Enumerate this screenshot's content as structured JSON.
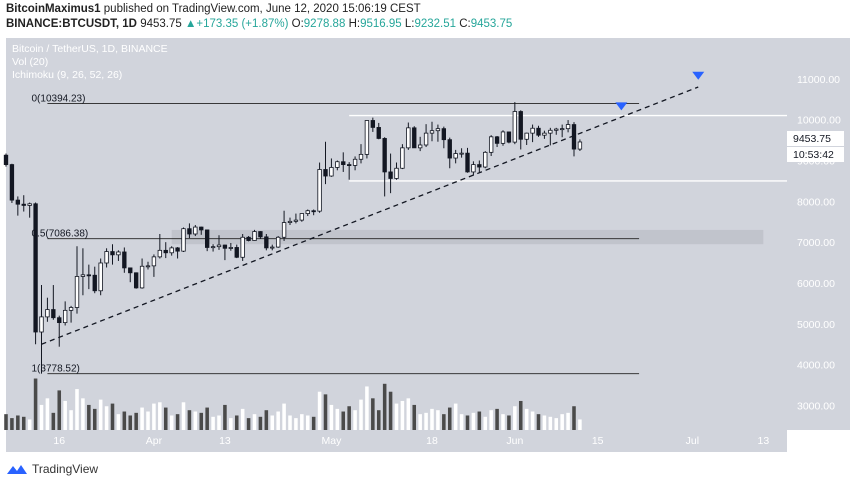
{
  "header": {
    "author": "BitcoinMaximus1",
    "published": "published on TradingView.com, June 12, 2020 15:06:19 CEST",
    "symbol": "BINANCE:BTCUSDT, 1D",
    "last": "9453.75",
    "change": "+173.35 (+1.87%)",
    "o_label": "O:",
    "o_value": "9278.88",
    "h_label": "H:",
    "h_value": "9516.95",
    "l_label": "L:",
    "l_value": "9232.51",
    "c_label": "C:",
    "c_value": "9453.75"
  },
  "legend": {
    "title": "Bitcoin / TetherUS, 1D, BINANCE",
    "vol": "Vol (20)",
    "ichimoku": "Ichimoku (9, 26, 52, 26)"
  },
  "price_tags": {
    "last": "9453.75",
    "countdown": "10:53:42"
  },
  "footer": {
    "brand": "TradingView"
  },
  "colors": {
    "background": "#d1d4dc",
    "up_candle": "#ffffff",
    "down_candle": "#131722",
    "vol_up": "#ffffff",
    "vol_down": "#4a4a4a",
    "marker": "#2962ff",
    "text_green": "#26a69a"
  },
  "chart_data": {
    "type": "candlestick",
    "y_axis": {
      "min": 2400,
      "max": 12000,
      "ticks": [
        3000,
        4000,
        5000,
        6000,
        7000,
        8000,
        9000,
        10000,
        11000
      ],
      "tick_labels": [
        "3000.00",
        "4000.00",
        "5000.00",
        "6000.00",
        "7000.00",
        "8000.00",
        "9000.00",
        "10000.00",
        "11000.00"
      ]
    },
    "x_axis": {
      "start": "2020-03-07",
      "end": "2020-07-17",
      "ticks": [
        {
          "date": "2020-03-16",
          "label": "16"
        },
        {
          "date": "2020-04-01",
          "label": "Apr"
        },
        {
          "date": "2020-04-13",
          "label": "13"
        },
        {
          "date": "2020-05-01",
          "label": "May"
        },
        {
          "date": "2020-05-18",
          "label": "18"
        },
        {
          "date": "2020-06-01",
          "label": "Jun"
        },
        {
          "date": "2020-06-15",
          "label": "15"
        },
        {
          "date": "2020-07-01",
          "label": "Jul"
        },
        {
          "date": "2020-07-13",
          "label": "13"
        }
      ]
    },
    "fib_levels": [
      {
        "label": "0(10394.23)",
        "value": 10394.23,
        "end": "2020-06-22"
      },
      {
        "label": "0.5(7086.38)",
        "value": 7086.38,
        "end": "2020-06-22"
      },
      {
        "label": "1(3778.52)",
        "value": 3778.52,
        "end": "2020-06-22"
      }
    ],
    "horizontal_lines": [
      10100,
      8500
    ],
    "zone": {
      "from": 6950,
      "to": 7300,
      "start": "2020-04-04",
      "end": "2020-07-13"
    },
    "trendline": {
      "start_date": "2020-03-13",
      "start_value": 4500,
      "end_date": "2020-07-02",
      "end_value": 10800
    },
    "markers": [
      {
        "date": "2020-06-19",
        "value": 10300
      },
      {
        "date": "2020-07-02",
        "value": 11050
      }
    ],
    "candles": [
      {
        "d": "2020-03-07",
        "o": 9130,
        "h": 9170,
        "l": 8850,
        "c": 8900
      },
      {
        "d": "2020-03-08",
        "o": 8900,
        "h": 8920,
        "l": 7960,
        "c": 8030
      },
      {
        "d": "2020-03-09",
        "o": 8030,
        "h": 8120,
        "l": 7650,
        "c": 7930
      },
      {
        "d": "2020-03-10",
        "o": 7930,
        "h": 8150,
        "l": 7750,
        "c": 7900
      },
      {
        "d": "2020-03-11",
        "o": 7900,
        "h": 7970,
        "l": 7600,
        "c": 7940
      },
      {
        "d": "2020-03-12",
        "o": 7940,
        "h": 7970,
        "l": 4500,
        "c": 4800
      },
      {
        "d": "2020-03-13",
        "o": 4800,
        "h": 5950,
        "l": 3780,
        "c": 5170
      },
      {
        "d": "2020-03-14",
        "o": 5170,
        "h": 5640,
        "l": 5050,
        "c": 5350
      },
      {
        "d": "2020-03-15",
        "o": 5350,
        "h": 5950,
        "l": 5100,
        "c": 5150
      },
      {
        "d": "2020-03-16",
        "o": 5150,
        "h": 5200,
        "l": 4440,
        "c": 5030
      },
      {
        "d": "2020-03-17",
        "o": 5030,
        "h": 5550,
        "l": 4960,
        "c": 5330
      },
      {
        "d": "2020-03-18",
        "o": 5330,
        "h": 5440,
        "l": 5030,
        "c": 5400
      },
      {
        "d": "2020-03-19",
        "o": 5400,
        "h": 6900,
        "l": 5250,
        "c": 6160
      },
      {
        "d": "2020-03-20",
        "o": 6160,
        "h": 6850,
        "l": 5700,
        "c": 6200
      },
      {
        "d": "2020-03-21",
        "o": 6200,
        "h": 6450,
        "l": 5850,
        "c": 6190
      },
      {
        "d": "2020-03-22",
        "o": 6190,
        "h": 6400,
        "l": 5750,
        "c": 5810
      },
      {
        "d": "2020-03-23",
        "o": 5810,
        "h": 6600,
        "l": 5700,
        "c": 6490
      },
      {
        "d": "2020-03-24",
        "o": 6490,
        "h": 6850,
        "l": 6380,
        "c": 6770
      },
      {
        "d": "2020-03-25",
        "o": 6770,
        "h": 6950,
        "l": 6450,
        "c": 6690
      },
      {
        "d": "2020-03-26",
        "o": 6690,
        "h": 6800,
        "l": 6540,
        "c": 6760
      },
      {
        "d": "2020-03-27",
        "o": 6760,
        "h": 6870,
        "l": 6250,
        "c": 6370
      },
      {
        "d": "2020-03-28",
        "o": 6370,
        "h": 6380,
        "l": 6020,
        "c": 6250
      },
      {
        "d": "2020-03-29",
        "o": 6250,
        "h": 6260,
        "l": 5860,
        "c": 5880
      },
      {
        "d": "2020-03-30",
        "o": 5880,
        "h": 6600,
        "l": 5860,
        "c": 6410
      },
      {
        "d": "2020-03-31",
        "o": 6410,
        "h": 6520,
        "l": 6330,
        "c": 6420
      },
      {
        "d": "2020-04-01",
        "o": 6420,
        "h": 6700,
        "l": 6150,
        "c": 6640
      },
      {
        "d": "2020-04-02",
        "o": 6640,
        "h": 7200,
        "l": 6600,
        "c": 6800
      },
      {
        "d": "2020-04-03",
        "o": 6800,
        "h": 7000,
        "l": 6610,
        "c": 6740
      },
      {
        "d": "2020-04-04",
        "o": 6740,
        "h": 6900,
        "l": 6670,
        "c": 6860
      },
      {
        "d": "2020-04-05",
        "o": 6860,
        "h": 6880,
        "l": 6600,
        "c": 6780
      },
      {
        "d": "2020-04-06",
        "o": 6780,
        "h": 7360,
        "l": 6760,
        "c": 7330
      },
      {
        "d": "2020-04-07",
        "o": 7330,
        "h": 7460,
        "l": 7100,
        "c": 7200
      },
      {
        "d": "2020-04-08",
        "o": 7200,
        "h": 7420,
        "l": 7150,
        "c": 7370
      },
      {
        "d": "2020-04-09",
        "o": 7370,
        "h": 7380,
        "l": 7180,
        "c": 7300
      },
      {
        "d": "2020-04-10",
        "o": 7300,
        "h": 7310,
        "l": 6780,
        "c": 6870
      },
      {
        "d": "2020-04-11",
        "o": 6870,
        "h": 6950,
        "l": 6770,
        "c": 6890
      },
      {
        "d": "2020-04-12",
        "o": 6890,
        "h": 7170,
        "l": 6810,
        "c": 6930
      },
      {
        "d": "2020-04-13",
        "o": 6930,
        "h": 6940,
        "l": 6560,
        "c": 6850
      },
      {
        "d": "2020-04-14",
        "o": 6850,
        "h": 6980,
        "l": 6790,
        "c": 6870
      },
      {
        "d": "2020-04-15",
        "o": 6870,
        "h": 6940,
        "l": 6610,
        "c": 6630
      },
      {
        "d": "2020-04-16",
        "o": 6630,
        "h": 7200,
        "l": 6540,
        "c": 7120
      },
      {
        "d": "2020-04-17",
        "o": 7120,
        "h": 7150,
        "l": 7020,
        "c": 7040
      },
      {
        "d": "2020-04-18",
        "o": 7040,
        "h": 7300,
        "l": 7030,
        "c": 7260
      },
      {
        "d": "2020-04-19",
        "o": 7260,
        "h": 7270,
        "l": 7080,
        "c": 7130
      },
      {
        "d": "2020-04-20",
        "o": 7130,
        "h": 7200,
        "l": 6800,
        "c": 6860
      },
      {
        "d": "2020-04-21",
        "o": 6860,
        "h": 6940,
        "l": 6800,
        "c": 6880
      },
      {
        "d": "2020-04-22",
        "o": 6880,
        "h": 7150,
        "l": 6860,
        "c": 7120
      },
      {
        "d": "2020-04-23",
        "o": 7120,
        "h": 7770,
        "l": 7030,
        "c": 7480
      },
      {
        "d": "2020-04-24",
        "o": 7480,
        "h": 7600,
        "l": 7420,
        "c": 7510
      },
      {
        "d": "2020-04-25",
        "o": 7510,
        "h": 7700,
        "l": 7460,
        "c": 7540
      },
      {
        "d": "2020-04-26",
        "o": 7540,
        "h": 7700,
        "l": 7500,
        "c": 7700
      },
      {
        "d": "2020-04-27",
        "o": 7700,
        "h": 7800,
        "l": 7640,
        "c": 7770
      },
      {
        "d": "2020-04-28",
        "o": 7770,
        "h": 7800,
        "l": 7660,
        "c": 7760
      },
      {
        "d": "2020-04-29",
        "o": 7760,
        "h": 8950,
        "l": 7720,
        "c": 8780
      },
      {
        "d": "2020-04-30",
        "o": 8780,
        "h": 9460,
        "l": 8420,
        "c": 8620
      },
      {
        "d": "2020-05-01",
        "o": 8620,
        "h": 9050,
        "l": 8600,
        "c": 8830
      },
      {
        "d": "2020-05-02",
        "o": 8830,
        "h": 9000,
        "l": 8760,
        "c": 8970
      },
      {
        "d": "2020-05-03",
        "o": 8970,
        "h": 9200,
        "l": 8720,
        "c": 8900
      },
      {
        "d": "2020-05-04",
        "o": 8900,
        "h": 8960,
        "l": 8530,
        "c": 8880
      },
      {
        "d": "2020-05-05",
        "o": 8880,
        "h": 9100,
        "l": 8760,
        "c": 9030
      },
      {
        "d": "2020-05-06",
        "o": 9030,
        "h": 9400,
        "l": 8930,
        "c": 9150
      },
      {
        "d": "2020-05-07",
        "o": 9150,
        "h": 9990,
        "l": 9050,
        "c": 9980
      },
      {
        "d": "2020-05-08",
        "o": 9980,
        "h": 10050,
        "l": 9700,
        "c": 9810
      },
      {
        "d": "2020-05-09",
        "o": 9810,
        "h": 9920,
        "l": 9520,
        "c": 9540
      },
      {
        "d": "2020-05-10",
        "o": 9540,
        "h": 9570,
        "l": 8120,
        "c": 8720
      },
      {
        "d": "2020-05-11",
        "o": 8720,
        "h": 9170,
        "l": 8200,
        "c": 8560
      },
      {
        "d": "2020-05-12",
        "o": 8560,
        "h": 8950,
        "l": 8530,
        "c": 8810
      },
      {
        "d": "2020-05-13",
        "o": 8810,
        "h": 9400,
        "l": 8790,
        "c": 9310
      },
      {
        "d": "2020-05-14",
        "o": 9310,
        "h": 9930,
        "l": 9260,
        "c": 9800
      },
      {
        "d": "2020-05-15",
        "o": 9800,
        "h": 9840,
        "l": 9330,
        "c": 9310
      },
      {
        "d": "2020-05-16",
        "o": 9310,
        "h": 9580,
        "l": 9230,
        "c": 9380
      },
      {
        "d": "2020-05-17",
        "o": 9380,
        "h": 9890,
        "l": 9330,
        "c": 9670
      },
      {
        "d": "2020-05-18",
        "o": 9670,
        "h": 9950,
        "l": 9470,
        "c": 9730
      },
      {
        "d": "2020-05-19",
        "o": 9730,
        "h": 9880,
        "l": 9460,
        "c": 9780
      },
      {
        "d": "2020-05-20",
        "o": 9780,
        "h": 9830,
        "l": 9300,
        "c": 9510
      },
      {
        "d": "2020-05-21",
        "o": 9510,
        "h": 9560,
        "l": 8810,
        "c": 9060
      },
      {
        "d": "2020-05-22",
        "o": 9060,
        "h": 9260,
        "l": 8930,
        "c": 9170
      },
      {
        "d": "2020-05-23",
        "o": 9170,
        "h": 9300,
        "l": 9070,
        "c": 9180
      },
      {
        "d": "2020-05-24",
        "o": 9180,
        "h": 9310,
        "l": 8700,
        "c": 8720
      },
      {
        "d": "2020-05-25",
        "o": 8720,
        "h": 8980,
        "l": 8630,
        "c": 8900
      },
      {
        "d": "2020-05-26",
        "o": 8900,
        "h": 9000,
        "l": 8700,
        "c": 8840
      },
      {
        "d": "2020-05-27",
        "o": 8840,
        "h": 9230,
        "l": 8810,
        "c": 9200
      },
      {
        "d": "2020-05-28",
        "o": 9200,
        "h": 9620,
        "l": 9110,
        "c": 9580
      },
      {
        "d": "2020-05-29",
        "o": 9580,
        "h": 9600,
        "l": 9330,
        "c": 9420
      },
      {
        "d": "2020-05-30",
        "o": 9420,
        "h": 9740,
        "l": 9360,
        "c": 9700
      },
      {
        "d": "2020-05-31",
        "o": 9700,
        "h": 9700,
        "l": 9420,
        "c": 9450
      },
      {
        "d": "2020-06-01",
        "o": 9450,
        "h": 10430,
        "l": 9400,
        "c": 10200
      },
      {
        "d": "2020-06-02",
        "o": 10200,
        "h": 10230,
        "l": 9270,
        "c": 9520
      },
      {
        "d": "2020-06-03",
        "o": 9520,
        "h": 9680,
        "l": 9380,
        "c": 9670
      },
      {
        "d": "2020-06-04",
        "o": 9670,
        "h": 9880,
        "l": 9450,
        "c": 9790
      },
      {
        "d": "2020-06-05",
        "o": 9790,
        "h": 9850,
        "l": 9580,
        "c": 9620
      },
      {
        "d": "2020-06-06",
        "o": 9620,
        "h": 9730,
        "l": 9530,
        "c": 9670
      },
      {
        "d": "2020-06-07",
        "o": 9670,
        "h": 9800,
        "l": 9370,
        "c": 9740
      },
      {
        "d": "2020-06-08",
        "o": 9740,
        "h": 9800,
        "l": 9630,
        "c": 9770
      },
      {
        "d": "2020-06-09",
        "o": 9770,
        "h": 9880,
        "l": 9570,
        "c": 9780
      },
      {
        "d": "2020-06-10",
        "o": 9780,
        "h": 9990,
        "l": 9690,
        "c": 9880
      },
      {
        "d": "2020-06-11",
        "o": 9880,
        "h": 9940,
        "l": 9100,
        "c": 9280
      },
      {
        "d": "2020-06-12",
        "o": 9278.88,
        "h": 9516.95,
        "l": 9232.51,
        "c": 9453.75
      }
    ],
    "volume_scale": {
      "min": 0,
      "max": 250000
    },
    "volume": [
      60000,
      45000,
      55000,
      50000,
      40000,
      195000,
      95000,
      120000,
      65000,
      150000,
      110000,
      75000,
      155000,
      120000,
      95000,
      80000,
      115000,
      90000,
      100000,
      60000,
      70000,
      55000,
      65000,
      85000,
      70000,
      100000,
      105000,
      85000,
      55000,
      60000,
      105000,
      75000,
      70000,
      65000,
      85000,
      50000,
      55000,
      95000,
      45000,
      55000,
      80000,
      45000,
      60000,
      50000,
      75000,
      55000,
      70000,
      100000,
      55000,
      45000,
      60000,
      55000,
      50000,
      145000,
      135000,
      95000,
      80000,
      70000,
      90000,
      75000,
      115000,
      165000,
      120000,
      75000,
      175000,
      145000,
      100000,
      110000,
      120000,
      95000,
      60000,
      65000,
      80000,
      75000,
      60000,
      85000,
      100000,
      60000,
      55000,
      65000,
      70000,
      50000,
      75000,
      80000,
      60000,
      55000,
      90000,
      110000,
      80000,
      70000,
      60000,
      55000,
      50000,
      45000,
      60000,
      65000,
      90000,
      40000
    ]
  }
}
